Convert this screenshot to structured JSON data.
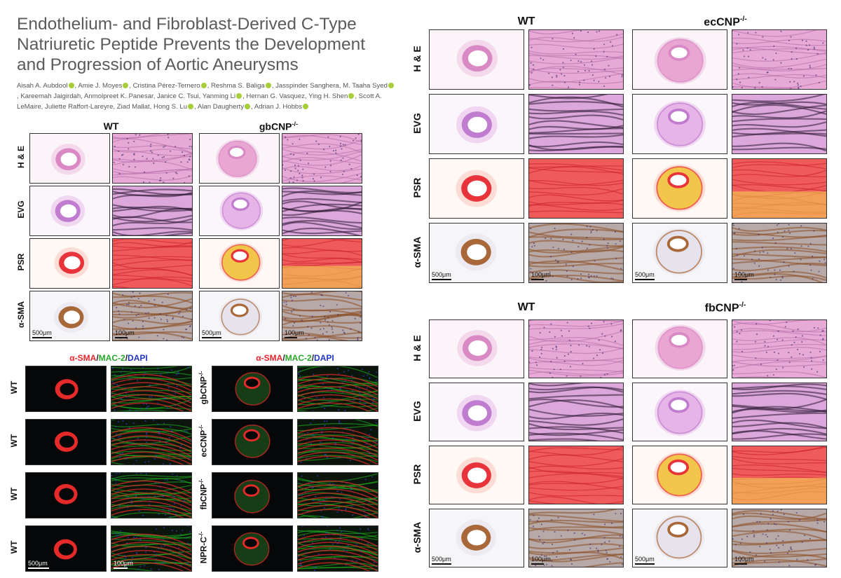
{
  "title": "Endothelium- and Fibroblast-Derived C-Type Natriuretic Peptide Prevents the Development and Progression of Aortic Aneurysms",
  "authors": [
    "Aisah A. Aubdool",
    "Amie J. Moyes",
    "Cristina Pérez-Ternero",
    "Reshma S. Baliga",
    "Jasspinder Sanghera",
    "M. Taaha Syed",
    "Kareemah Jaigirdah",
    "Anmolpreet K. Panesar",
    "Janice C. Tsui",
    "Yanming Li",
    "Hernan G. Vasquez",
    "Ying H. Shen",
    "Scott A. LeMaire",
    "Juliette Raffort-Lareyre",
    "Ziad Mallat",
    "Hong S. Lu",
    "Alan Daugherty",
    "Adrian J. Hobbs"
  ],
  "orcid_authors": [
    0,
    1,
    2,
    3,
    5,
    9,
    11,
    15,
    16,
    17
  ],
  "colors": {
    "title": "#5b5b5b",
    "orcid": "#a6ce39",
    "sma": "#e8252c",
    "mac2": "#2aa82a",
    "dapi": "#2036c8"
  },
  "panels": {
    "gb": {
      "col_wt": "WT",
      "col_ko_base": "gbCNP",
      "col_ko_sup": "-/-",
      "rows": [
        "H & E",
        "EVG",
        "PSR",
        "α-SMA"
      ],
      "scale_low": "500μm",
      "scale_high": "100μm"
    },
    "ec": {
      "col_wt": "WT",
      "col_ko_base": "ecCNP",
      "col_ko_sup": "-/-",
      "rows": [
        "H & E",
        "EVG",
        "PSR",
        "α-SMA"
      ],
      "scale_low": "500μm",
      "scale_high": "100μm"
    },
    "fb": {
      "col_wt": "WT",
      "col_ko_base": "fbCNP",
      "col_ko_sup": "-/-",
      "rows": [
        "H & E",
        "EVG",
        "PSR",
        "α-SMA"
      ],
      "scale_low": "500μm",
      "scale_high": "100μm"
    },
    "fluo": {
      "stain_a": "α-SMA",
      "stain_b": "MAC-2",
      "stain_c": "DAPI",
      "slash": "/",
      "left_rows": [
        "WT",
        "WT",
        "WT",
        "WT"
      ],
      "right_rows": [
        {
          "base": "gbCNP",
          "sup": "-/-"
        },
        {
          "base": "ecCNP",
          "sup": "-/-"
        },
        {
          "base": "fbCNP",
          "sup": "-/-"
        },
        {
          "base": "NPR-C",
          "sup": "-/-"
        }
      ],
      "scale_low": "500μm",
      "scale_high": "100μm"
    }
  }
}
